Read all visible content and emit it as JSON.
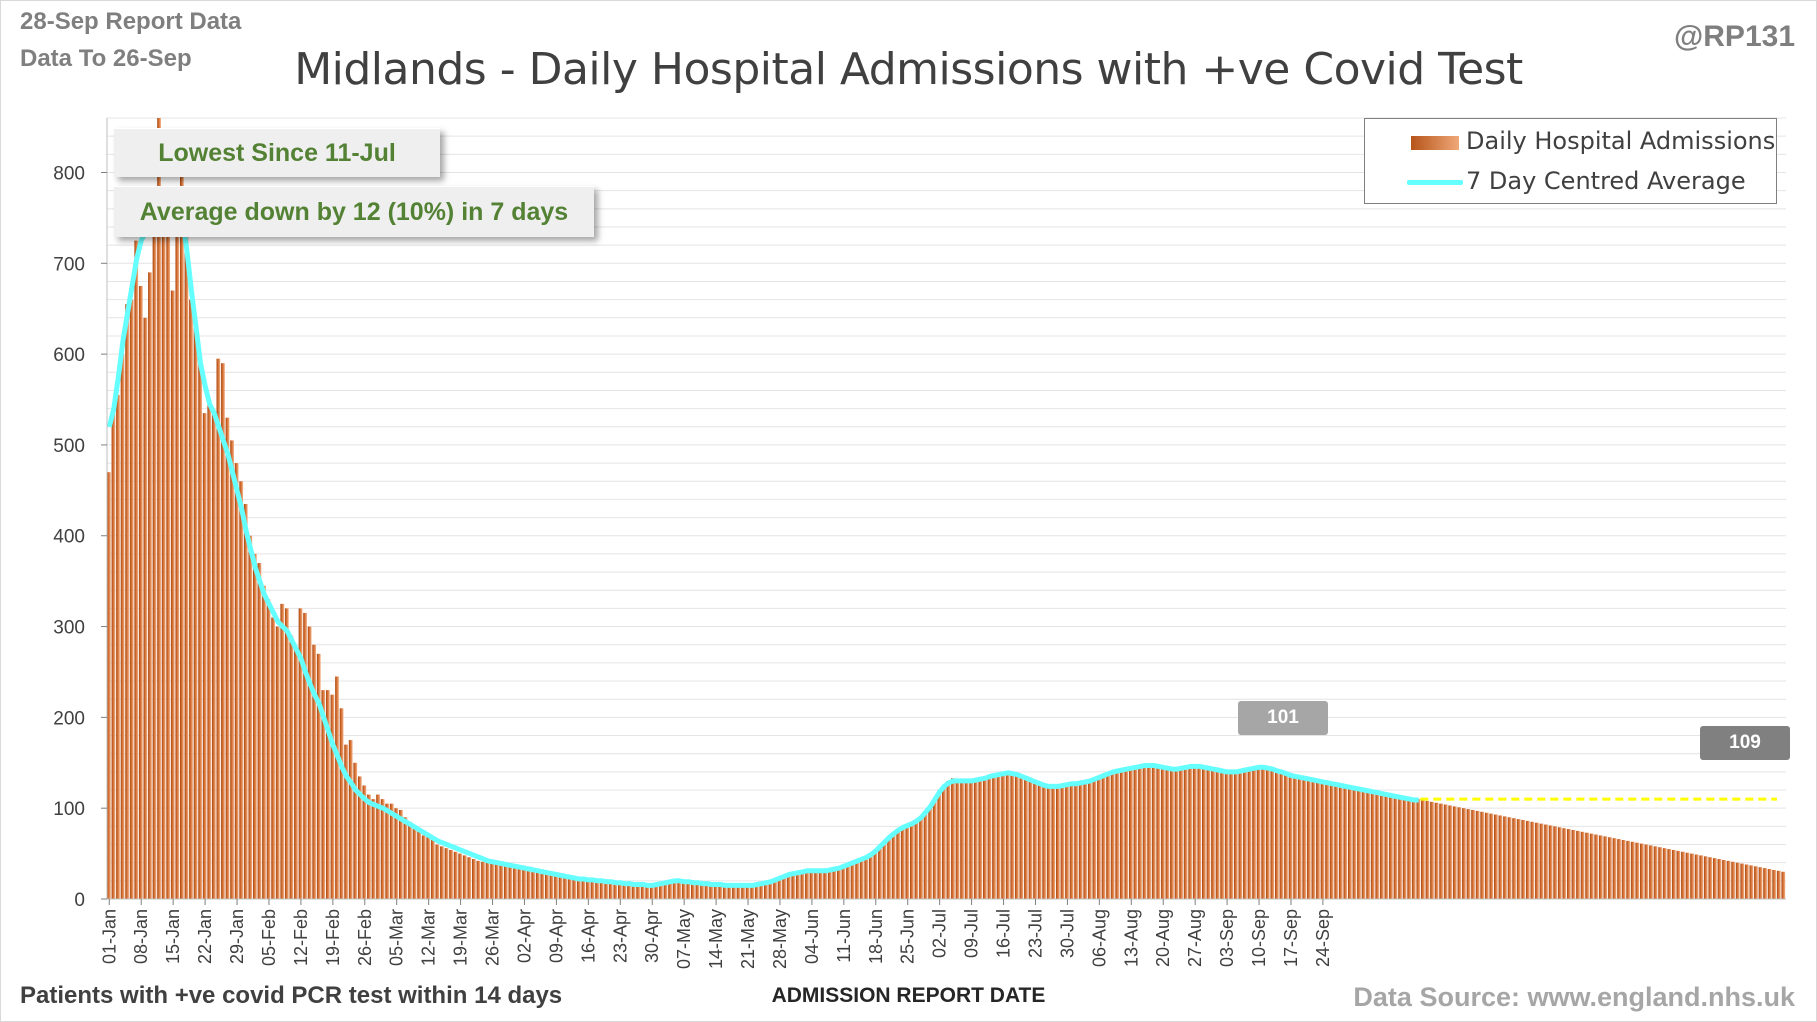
{
  "header": {
    "report_data": "28-Sep Report Data",
    "data_to": "Data To 26-Sep",
    "handle": "@RP131"
  },
  "chart_data": {
    "type": "bar",
    "title": "Midlands - Daily Hospital Admissions with +ve Covid Test",
    "xlabel": "ADMISSION REPORT DATE",
    "ylabel": "",
    "ylim": [
      0,
      860
    ],
    "yticks": [
      0,
      100,
      200,
      300,
      400,
      500,
      600,
      700,
      800
    ],
    "x_start": "01-Jan",
    "x_end": "26-Sep",
    "xtick_labels": [
      "01-Jan",
      "08-Jan",
      "15-Jan",
      "22-Jan",
      "29-Jan",
      "05-Feb",
      "12-Feb",
      "19-Feb",
      "26-Feb",
      "05-Mar",
      "12-Mar",
      "19-Mar",
      "26-Mar",
      "02-Apr",
      "09-Apr",
      "16-Apr",
      "23-Apr",
      "30-Apr",
      "07-May",
      "14-May",
      "21-May",
      "28-May",
      "04-Jun",
      "11-Jun",
      "18-Jun",
      "25-Jun",
      "02-Jul",
      "09-Jul",
      "16-Jul",
      "23-Jul",
      "30-Jul",
      "06-Aug",
      "13-Aug",
      "20-Aug",
      "27-Aug",
      "03-Sep",
      "10-Sep",
      "17-Sep",
      "24-Sep"
    ],
    "grid": true,
    "legend_position": "top-right",
    "series": [
      {
        "name": "Daily Hospital Admissions",
        "type": "bar",
        "color": "#c65b1b",
        "values": [
          470,
          540,
          555,
          600,
          655,
          660,
          725,
          675,
          640,
          690,
          740,
          860,
          750,
          740,
          670,
          770,
          800,
          760,
          660,
          640,
          590,
          535,
          545,
          535,
          595,
          590,
          530,
          505,
          480,
          460,
          435,
          400,
          380,
          370,
          345,
          330,
          310,
          300,
          325,
          320,
          290,
          275,
          320,
          315,
          300,
          280,
          270,
          230,
          230,
          225,
          245,
          210,
          170,
          175,
          150,
          135,
          125,
          115,
          110,
          115,
          110,
          105,
          105,
          100,
          98,
          90,
          85,
          80,
          75,
          70,
          68,
          65,
          60,
          58,
          56,
          54,
          52,
          50,
          48,
          46,
          44,
          42,
          41,
          40,
          39,
          38,
          37,
          36,
          35,
          34,
          33,
          32,
          31,
          30,
          29,
          28,
          27,
          26,
          25,
          24,
          23,
          22,
          21,
          20,
          20,
          19,
          19,
          18,
          18,
          17,
          17,
          16,
          16,
          15,
          15,
          15,
          14,
          14,
          14,
          15,
          16,
          17,
          18,
          19,
          20,
          20,
          19,
          18,
          18,
          17,
          17,
          16,
          16,
          16,
          15,
          15,
          15,
          15,
          15,
          15,
          15,
          15,
          16,
          17,
          18,
          19,
          21,
          23,
          25,
          27,
          28,
          29,
          30,
          31,
          31,
          30,
          30,
          30,
          31,
          32,
          33,
          35,
          37,
          39,
          41,
          43,
          45,
          48,
          52,
          57,
          62,
          67,
          72,
          76,
          80,
          82,
          84,
          86,
          90,
          96,
          102,
          110,
          118,
          125,
          130,
          133,
          132,
          131,
          130,
          131,
          132,
          133,
          134,
          136,
          137,
          138,
          139,
          140,
          139,
          138,
          136,
          134,
          132,
          130,
          128,
          126,
          125,
          124,
          124,
          125,
          126,
          127,
          128,
          128,
          129,
          130,
          132,
          134,
          136,
          138,
          140,
          141,
          142,
          143,
          144,
          145,
          146,
          147,
          147,
          147,
          146,
          145,
          144,
          143,
          143,
          144,
          145,
          146,
          146,
          146,
          145,
          144,
          143,
          142,
          141,
          140,
          140,
          140,
          141,
          142,
          143,
          144,
          145,
          145,
          144,
          143,
          141,
          140,
          138,
          137,
          136,
          135,
          134,
          133,
          132,
          131,
          130,
          130,
          129,
          128,
          127,
          126,
          125,
          124,
          123,
          122,
          121,
          120,
          119,
          118,
          117,
          116,
          115,
          114,
          113,
          112,
          111,
          110,
          109,
          108,
          107,
          106,
          105,
          104,
          103,
          102,
          101,
          100,
          99,
          98,
          97,
          96,
          95,
          94,
          93,
          92,
          91,
          90,
          89,
          88,
          87,
          86,
          85,
          84,
          83,
          82,
          81,
          80,
          79,
          78,
          77,
          76,
          75,
          74,
          73,
          72,
          71,
          70,
          69,
          68,
          67,
          66,
          65,
          64,
          63,
          62,
          61,
          60,
          59,
          58,
          57,
          56,
          55,
          54,
          53,
          52,
          51,
          50,
          49,
          48,
          47,
          46,
          45,
          44,
          43,
          42,
          41,
          40,
          39,
          38,
          37,
          36,
          35,
          34,
          33,
          32,
          31,
          30
        ]
      },
      {
        "name": "7 Day Centred Average",
        "type": "line",
        "color": "#66ffff",
        "values": [
          520,
          540,
          575,
          615,
          645,
          675,
          705,
          725,
          735,
          735,
          740,
          755,
          760,
          760,
          765,
          760,
          750,
          715,
          670,
          630,
          590,
          565,
          545,
          535,
          520,
          505,
          490,
          470,
          450,
          430,
          405,
          385,
          365,
          350,
          335,
          325,
          315,
          305,
          300,
          295,
          285,
          275,
          265,
          250,
          237,
          225,
          215,
          200,
          185,
          170,
          158,
          145,
          135,
          128,
          120,
          115,
          110,
          106,
          104,
          102,
          100,
          97,
          94,
          91,
          88,
          85,
          82,
          79,
          76,
          73,
          70,
          67,
          64,
          62,
          60,
          58,
          56,
          54,
          52,
          50,
          48,
          46,
          44,
          42,
          41,
          40,
          39,
          38,
          37,
          36,
          35,
          34,
          33,
          32,
          31,
          30,
          29,
          28,
          27,
          26,
          25,
          24,
          23,
          22,
          22,
          21,
          21,
          20,
          20,
          19,
          19,
          18,
          18,
          17,
          17,
          16,
          16,
          16,
          15,
          15,
          16,
          17,
          18,
          19,
          20,
          20,
          19,
          19,
          18,
          18,
          17,
          17,
          16,
          16,
          16,
          15,
          15,
          15,
          15,
          15,
          15,
          15,
          16,
          17,
          18,
          19,
          21,
          23,
          25,
          27,
          28,
          29,
          30,
          31,
          31,
          31,
          31,
          31,
          32,
          33,
          34,
          36,
          38,
          40,
          42,
          44,
          46,
          49,
          53,
          58,
          63,
          68,
          72,
          76,
          79,
          81,
          83,
          86,
          90,
          96,
          102,
          110,
          118,
          124,
          128,
          130,
          130,
          130,
          130,
          130,
          131,
          132,
          133,
          135,
          136,
          137,
          138,
          139,
          138,
          137,
          135,
          133,
          131,
          129,
          127,
          125,
          124,
          124,
          124,
          125,
          126,
          127,
          127,
          128,
          129,
          130,
          132,
          134,
          136,
          138,
          140,
          141,
          142,
          143,
          144,
          145,
          146,
          147,
          147,
          147,
          146,
          145,
          144,
          143,
          143,
          144,
          145,
          146,
          146,
          146,
          145,
          144,
          143,
          142,
          141,
          140,
          140,
          140,
          141,
          142,
          143,
          144,
          145,
          145,
          144,
          143,
          141,
          140,
          138,
          136,
          135,
          134,
          133,
          132,
          131,
          130,
          129,
          128,
          127,
          126,
          125,
          124,
          123,
          122,
          121,
          120,
          119,
          118,
          117,
          116,
          115,
          114,
          113,
          112,
          111,
          110,
          109,
          109
        ]
      }
    ],
    "annotations": {
      "lowest_since": "Lowest Since 11-Jul",
      "average_change": "Average down by 12 (10%) in 7 days",
      "callout_start": "101",
      "callout_end": "109",
      "reference_level": 110
    }
  },
  "footer": {
    "note": "Patients with +ve covid PCR test within 14 days",
    "source": "Data Source: www.england.nhs.uk"
  }
}
